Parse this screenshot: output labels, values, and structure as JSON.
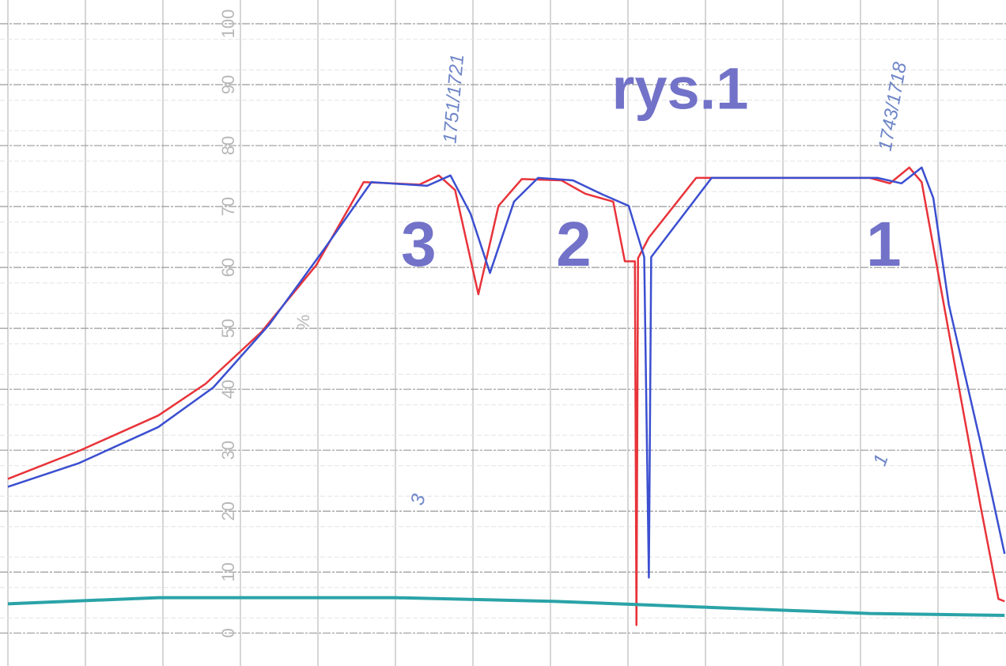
{
  "chart_data": {
    "type": "line",
    "title": "rys.1",
    "y_unit_label": "%",
    "annotations": [
      {
        "text": "3",
        "x": 5.3,
        "y": 63
      },
      {
        "text": "2",
        "x": 7.3,
        "y": 63
      },
      {
        "text": "1",
        "x": 11.3,
        "y": 63
      }
    ],
    "handwritten_notes": [
      "1751/1721",
      "1743/1718",
      "3",
      "1"
    ],
    "xlim": [
      -0.102,
      12.878
    ],
    "ylim": [
      -1,
      100
    ],
    "yticks": [
      0,
      10,
      20,
      30,
      40,
      50,
      60,
      70,
      80,
      90,
      100
    ],
    "grid": true,
    "series": [
      {
        "color": "#e8333a",
        "x": [
          0,
          0.92,
          1.94,
          2.55,
          3.27,
          3.98,
          4.59,
          5.31,
          5.56,
          5.77,
          6.07,
          6.33,
          6.63,
          7.14,
          7.45,
          7.81,
          7.96,
          8.09,
          8.11,
          8.13,
          8.27,
          8.88,
          11.12,
          11.38,
          11.63,
          11.79,
          12.14,
          12.55,
          12.78,
          12.86
        ],
        "values": [
          25.3,
          29.9,
          35.7,
          40.9,
          49.4,
          60.4,
          74.0,
          73.6,
          75.1,
          72.7,
          55.6,
          70.1,
          74.5,
          74.3,
          72.1,
          70.8,
          61.0,
          61.0,
          1.3,
          61.5,
          64.9,
          74.7,
          74.7,
          73.8,
          76.4,
          74.0,
          49.4,
          20.8,
          5.6,
          5.2
        ]
      },
      {
        "color": "#3b4fd0",
        "x": [
          0,
          0.92,
          1.94,
          2.65,
          3.37,
          4.08,
          4.69,
          5.41,
          5.71,
          5.97,
          6.22,
          6.53,
          6.84,
          7.29,
          7.65,
          8.01,
          8.21,
          8.27,
          8.3,
          9.08,
          11.22,
          11.53,
          11.79,
          11.94,
          12.14,
          12.55,
          12.86
        ],
        "values": [
          24.0,
          27.9,
          33.8,
          40.3,
          50.6,
          63.0,
          74.0,
          73.4,
          75.1,
          68.8,
          59.1,
          70.8,
          74.7,
          74.3,
          72.1,
          70.1,
          61.7,
          9.1,
          61.7,
          74.7,
          74.7,
          73.8,
          76.4,
          71.4,
          53.9,
          31.2,
          13.0
        ]
      },
      {
        "color": "#2aa3a8",
        "x": [
          0,
          1.94,
          5.0,
          7.04,
          9.08,
          11.12,
          12.86
        ],
        "values": [
          4.8,
          5.8,
          5.8,
          5.2,
          4.2,
          3.2,
          2.9
        ]
      }
    ]
  }
}
